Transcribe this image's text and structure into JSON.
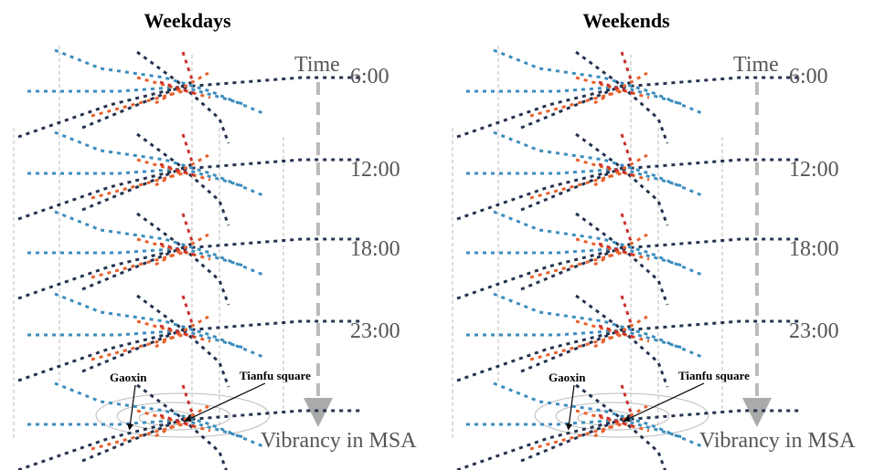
{
  "panels": [
    {
      "title": "Weekdays",
      "time_label": "Time",
      "times": [
        "6:00",
        "12:00",
        "18:00",
        "23:00"
      ],
      "base_label": "Vibrancy in MSA",
      "annotations": [
        "Gaoxin",
        "Tianfu square"
      ]
    },
    {
      "title": "Weekends",
      "time_label": "Time",
      "times": [
        "6:00",
        "12:00",
        "18:00",
        "23:00"
      ],
      "base_label": "Vibrancy in MSA",
      "annotations": [
        "Gaoxin",
        "Tianfu square"
      ]
    }
  ]
}
